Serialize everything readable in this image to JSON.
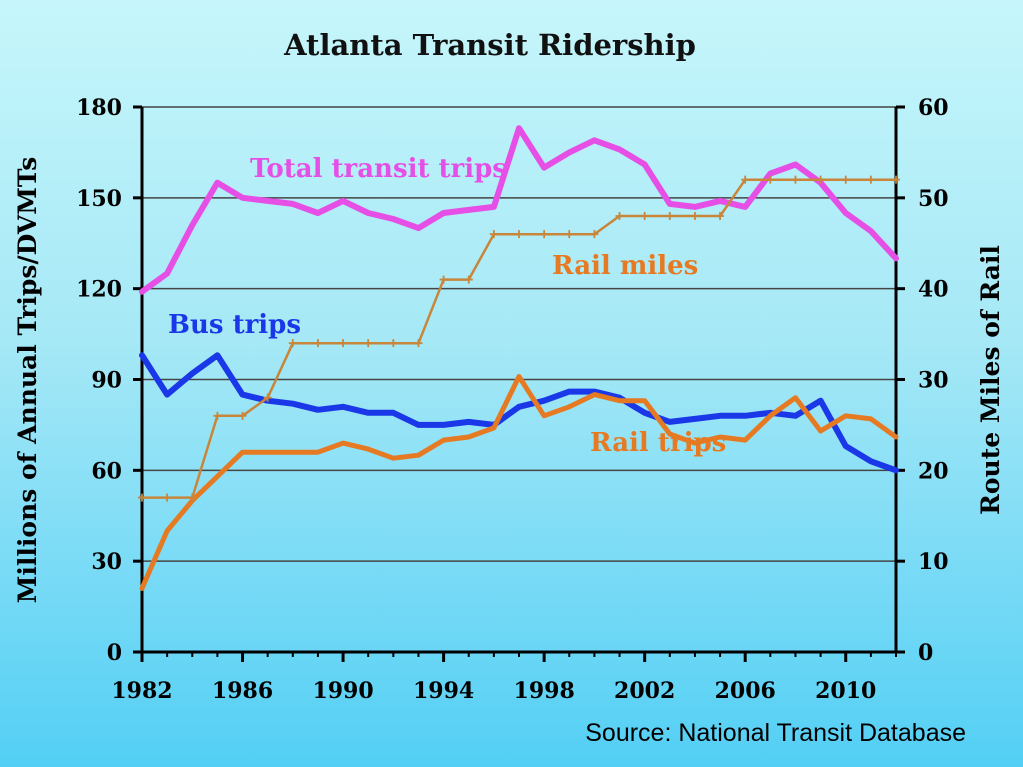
{
  "source_note": "Source: National Transit Database",
  "chart_data": {
    "type": "line",
    "title": "Atlanta Transit Ridership",
    "ylabel_left": "Millions of Annual Trips/DVMTs",
    "ylabel_right": "Route Miles of Rail",
    "xlim": [
      1982,
      2012
    ],
    "ylim_left": [
      0,
      180
    ],
    "ylim_right": [
      0,
      60
    ],
    "x_ticks": [
      1982,
      1986,
      1990,
      1994,
      1998,
      2002,
      2006,
      2010
    ],
    "y_ticks_left": [
      0,
      30,
      60,
      90,
      120,
      150,
      180
    ],
    "y_ticks_right": [
      0,
      10,
      20,
      30,
      40,
      50,
      60
    ],
    "grid": true,
    "x": [
      1982,
      1983,
      1984,
      1985,
      1986,
      1987,
      1988,
      1989,
      1990,
      1991,
      1992,
      1993,
      1994,
      1995,
      1996,
      1997,
      1998,
      1999,
      2000,
      2001,
      2002,
      2003,
      2004,
      2005,
      2006,
      2007,
      2008,
      2009,
      2010,
      2011,
      2012
    ],
    "series": [
      {
        "name": "Total transit trips",
        "axis": "left",
        "color": "#e64fe6",
        "values": [
          119,
          125,
          141,
          155,
          150,
          149,
          148,
          145,
          149,
          145,
          143,
          140,
          145,
          146,
          147,
          173,
          160,
          165,
          169,
          166,
          161,
          148,
          147,
          149,
          147,
          158,
          161,
          155,
          145,
          139,
          130
        ]
      },
      {
        "name": "Bus trips",
        "axis": "left",
        "color": "#1a38e8",
        "values": [
          98,
          85,
          92,
          98,
          85,
          83,
          82,
          80,
          81,
          79,
          79,
          75,
          75,
          76,
          75,
          81,
          83,
          86,
          86,
          84,
          79,
          76,
          77,
          78,
          78,
          79,
          78,
          83,
          68,
          63,
          60
        ]
      },
      {
        "name": "Rail trips",
        "axis": "left",
        "color": "#e67a22",
        "values": [
          21,
          40,
          50,
          58,
          66,
          66,
          66,
          66,
          69,
          67,
          64,
          65,
          70,
          71,
          74,
          91,
          78,
          81,
          85,
          83,
          83,
          72,
          69,
          71,
          70,
          78,
          84,
          73,
          78,
          77,
          71
        ]
      },
      {
        "name": "Rail miles",
        "axis": "right",
        "color": "#c8863a",
        "values": [
          17,
          17,
          17,
          26,
          26,
          28,
          34,
          34,
          34,
          34,
          34,
          34,
          41,
          41,
          46,
          46,
          46,
          46,
          46,
          48,
          48,
          48,
          48,
          48,
          52,
          52,
          52,
          52,
          52,
          52,
          52
        ]
      }
    ]
  }
}
